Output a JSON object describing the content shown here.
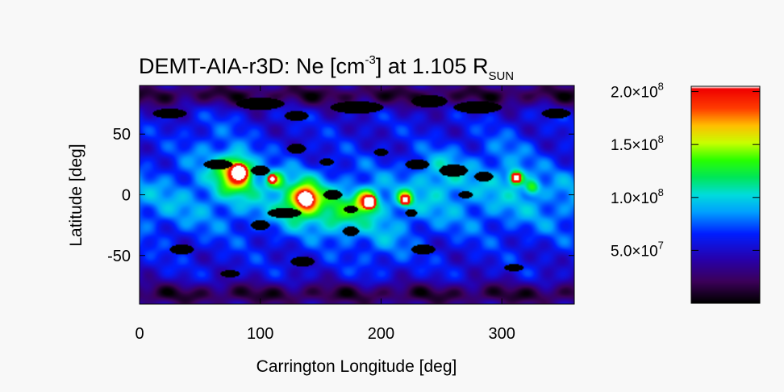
{
  "chart_data": {
    "type": "heatmap",
    "title": {
      "main": "DEMT-AIA-r3D: Ne [cm",
      "sup": "-3",
      "mid": "] at 1.105 R",
      "sub": "SUN"
    },
    "xlabel": "Carrington Longitude [deg]",
    "ylabel": "Latitude [deg]",
    "xlim": [
      0,
      360
    ],
    "ylim": [
      -90,
      90
    ],
    "x_ticks": [
      {
        "value": 0,
        "label": "0"
      },
      {
        "value": 100,
        "label": "100"
      },
      {
        "value": 200,
        "label": "200"
      },
      {
        "value": 300,
        "label": "300"
      }
    ],
    "y_ticks": [
      {
        "value": 50,
        "label": "50"
      },
      {
        "value": 0,
        "label": "0"
      },
      {
        "value": -50,
        "label": "-50"
      }
    ],
    "colorbar": {
      "range": [
        0,
        205000000.0
      ],
      "colormap": "rainbow",
      "ticks": [
        {
          "value": 200000000.0,
          "mantissa": "2.0",
          "times": "×10",
          "exp": "8"
        },
        {
          "value": 150000000.0,
          "mantissa": "1.5",
          "times": "×10",
          "exp": "8"
        },
        {
          "value": 100000000.0,
          "mantissa": "1.0",
          "times": "×10",
          "exp": "8"
        },
        {
          "value": 50000000.0,
          "mantissa": "5.0",
          "times": "×10",
          "exp": "7"
        }
      ]
    },
    "background_value": 55000000.0,
    "features": [
      {
        "kind": "belt",
        "lat_center": -5,
        "lat_width": 30,
        "value": 30000000.0
      },
      {
        "kind": "polar_low",
        "lat": 82,
        "value": -40000000.0
      },
      {
        "kind": "polar_low",
        "lat": -82,
        "value": -40000000.0
      },
      {
        "kind": "blob",
        "lon": 80,
        "lat": 18,
        "r": 16,
        "value": 100000000.0
      },
      {
        "kind": "blob",
        "lon": 82,
        "lat": 18,
        "r": 6,
        "value": 150000000.0
      },
      {
        "kind": "blob",
        "lon": 135,
        "lat": -5,
        "r": 18,
        "value": 70000000.0
      },
      {
        "kind": "blob",
        "lon": 138,
        "lat": -3,
        "r": 8,
        "value": 110000000.0
      },
      {
        "kind": "blob",
        "lon": 112,
        "lat": 12,
        "r": 8,
        "value": 70000000.0
      },
      {
        "kind": "blob",
        "lon": 165,
        "lat": -18,
        "r": 18,
        "value": 40000000.0
      },
      {
        "kind": "blob",
        "lon": 188,
        "lat": -5,
        "r": 9,
        "value": 110000000.0
      },
      {
        "kind": "blob",
        "lon": 220,
        "lat": -3,
        "r": 6,
        "value": 90000000.0
      },
      {
        "kind": "blob",
        "lon": 250,
        "lat": 20,
        "r": 20,
        "value": 30000000.0
      },
      {
        "kind": "blob",
        "lon": 312,
        "lat": 14,
        "r": 6,
        "value": 100000000.0
      },
      {
        "kind": "blob",
        "lon": 325,
        "lat": 6,
        "r": 6,
        "value": 60000000.0
      },
      {
        "kind": "blob",
        "lon": 300,
        "lat": 30,
        "r": 25,
        "value": 20000000.0
      },
      {
        "kind": "blob",
        "lon": 60,
        "lat": 40,
        "r": 25,
        "value": 20000000.0
      },
      {
        "kind": "blob",
        "lon": 200,
        "lat": -40,
        "r": 25,
        "value": 20000000.0
      }
    ],
    "saturated_spots": [
      {
        "lon": 82,
        "lat": 18,
        "r": 6
      },
      {
        "lon": 190,
        "lat": -6,
        "r": 4.5
      },
      {
        "lon": 220,
        "lat": -4,
        "r": 2.5
      },
      {
        "lon": 312,
        "lat": 14,
        "r": 2.5
      },
      {
        "lon": 110,
        "lat": 13,
        "r": 2
      }
    ],
    "zero_regions": [
      {
        "lon": 25,
        "lat": 67,
        "rx": 14,
        "ry": 4
      },
      {
        "lon": 100,
        "lat": 75,
        "rx": 20,
        "ry": 5
      },
      {
        "lon": 130,
        "lat": 65,
        "rx": 10,
        "ry": 4
      },
      {
        "lon": 180,
        "lat": 72,
        "rx": 22,
        "ry": 5
      },
      {
        "lon": 240,
        "lat": 77,
        "rx": 15,
        "ry": 5
      },
      {
        "lon": 280,
        "lat": 72,
        "rx": 20,
        "ry": 5
      },
      {
        "lon": 345,
        "lat": 67,
        "rx": 12,
        "ry": 4
      },
      {
        "lon": 65,
        "lat": 25,
        "rx": 12,
        "ry": 4
      },
      {
        "lon": 100,
        "lat": 20,
        "rx": 8,
        "ry": 4
      },
      {
        "lon": 130,
        "lat": 38,
        "rx": 8,
        "ry": 4
      },
      {
        "lon": 155,
        "lat": 27,
        "rx": 6,
        "ry": 3
      },
      {
        "lon": 120,
        "lat": -15,
        "rx": 14,
        "ry": 4
      },
      {
        "lon": 100,
        "lat": -25,
        "rx": 8,
        "ry": 4
      },
      {
        "lon": 160,
        "lat": 0,
        "rx": 8,
        "ry": 4
      },
      {
        "lon": 175,
        "lat": -12,
        "rx": 6,
        "ry": 3
      },
      {
        "lon": 175,
        "lat": -30,
        "rx": 7,
        "ry": 4
      },
      {
        "lon": 230,
        "lat": 25,
        "rx": 10,
        "ry": 4
      },
      {
        "lon": 260,
        "lat": 20,
        "rx": 12,
        "ry": 5
      },
      {
        "lon": 285,
        "lat": 15,
        "rx": 8,
        "ry": 4
      },
      {
        "lon": 270,
        "lat": 0,
        "rx": 6,
        "ry": 3
      },
      {
        "lon": 35,
        "lat": -45,
        "rx": 10,
        "ry": 4
      },
      {
        "lon": 135,
        "lat": -55,
        "rx": 10,
        "ry": 4
      },
      {
        "lon": 235,
        "lat": -45,
        "rx": 10,
        "ry": 4
      },
      {
        "lon": 75,
        "lat": -65,
        "rx": 8,
        "ry": 3
      },
      {
        "lon": 225,
        "lat": -15,
        "rx": 5,
        "ry": 3
      },
      {
        "lon": 200,
        "lat": 35,
        "rx": 6,
        "ry": 3
      },
      {
        "lon": 310,
        "lat": -60,
        "rx": 8,
        "ry": 3
      }
    ]
  }
}
